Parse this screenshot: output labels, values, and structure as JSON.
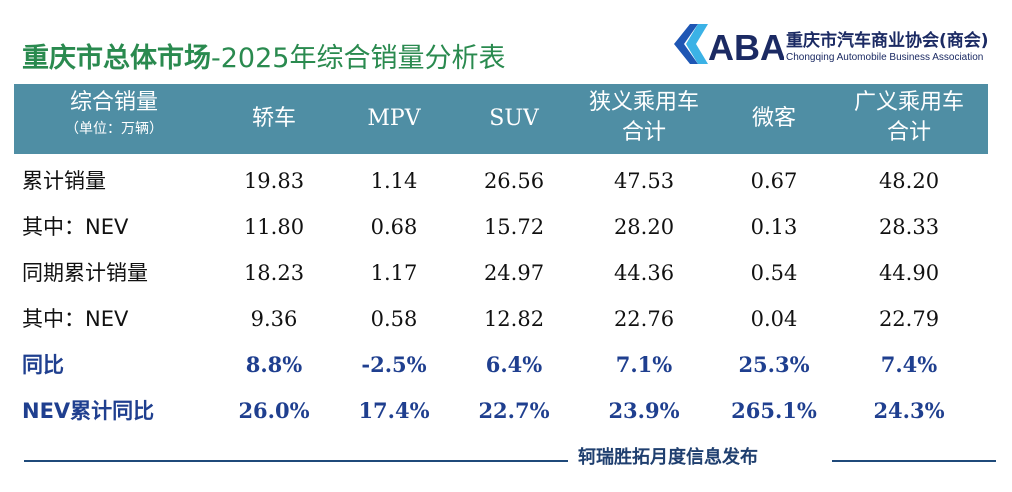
{
  "title": {
    "bold": "重庆市总体市场",
    "rest": "-2025年综合销量分析表"
  },
  "logo": {
    "mark": "CABA",
    "name_cn": "重庆市汽车商业协会(商会)",
    "name_en": "Chongqing Automobile Business Association",
    "colors": {
      "blue": "#1e56b4",
      "cyan": "#3bb2e6",
      "navy": "#1b2a63"
    }
  },
  "table": {
    "header_bg": "#4f8ea4",
    "header": {
      "label_main": "综合销量",
      "label_unit": "（单位：万辆）",
      "columns": [
        {
          "line1": "轿车",
          "line2": ""
        },
        {
          "line1": "MPV",
          "line2": ""
        },
        {
          "line1": "SUV",
          "line2": ""
        },
        {
          "line1": "狭义乘用车",
          "line2": "合计"
        },
        {
          "line1": "微客",
          "line2": ""
        },
        {
          "line1": "广义乘用车",
          "line2": "合计"
        }
      ]
    },
    "rows": [
      {
        "label": "累计销量",
        "values": [
          "19.83",
          "1.14",
          "26.56",
          "47.53",
          "0.67",
          "48.20"
        ]
      },
      {
        "label": "其中：NEV",
        "values": [
          "11.80",
          "0.68",
          "15.72",
          "28.20",
          "0.13",
          "28.33"
        ]
      },
      {
        "label": "同期累计销量",
        "values": [
          "18.23",
          "1.17",
          "24.97",
          "44.36",
          "0.54",
          "44.90"
        ]
      },
      {
        "label": "其中：NEV",
        "values": [
          "9.36",
          "0.58",
          "12.82",
          "22.76",
          "0.04",
          "22.79"
        ]
      },
      {
        "label": "同比",
        "values": [
          "8.8%",
          "-2.5%",
          "6.4%",
          "7.1%",
          "25.3%",
          "7.4%"
        ]
      },
      {
        "label": "NEV累计同比",
        "values": [
          "26.0%",
          "17.4%",
          "22.7%",
          "23.9%",
          "265.1%",
          "24.3%"
        ]
      }
    ],
    "highlight_color": "#1f3f8f"
  },
  "footer": {
    "text": "轲瑞胜拓月度信息发布"
  }
}
